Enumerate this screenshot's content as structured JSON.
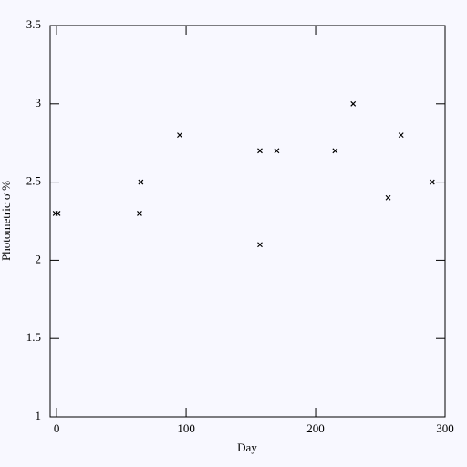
{
  "chart_data": {
    "type": "scatter",
    "xlabel": "Day",
    "ylabel": "Photometric σ %",
    "series": [
      {
        "color": "#000000",
        "x": [
          -1,
          1,
          64,
          65,
          95,
          157,
          157,
          170,
          215,
          229,
          256,
          266,
          290
        ],
        "values": [
          2.3,
          2.3,
          2.3,
          2.5,
          2.8,
          2.7,
          2.1,
          2.7,
          2.7,
          3.0,
          2.4,
          2.8,
          2.5
        ]
      }
    ],
    "xlim": [
      -5,
      300
    ],
    "xticks": [
      0,
      100,
      200,
      300
    ],
    "ylim": [
      1,
      3.5
    ],
    "yticks": [
      1,
      1.5,
      2,
      2.5,
      3,
      3.5
    ],
    "grid": false
  }
}
